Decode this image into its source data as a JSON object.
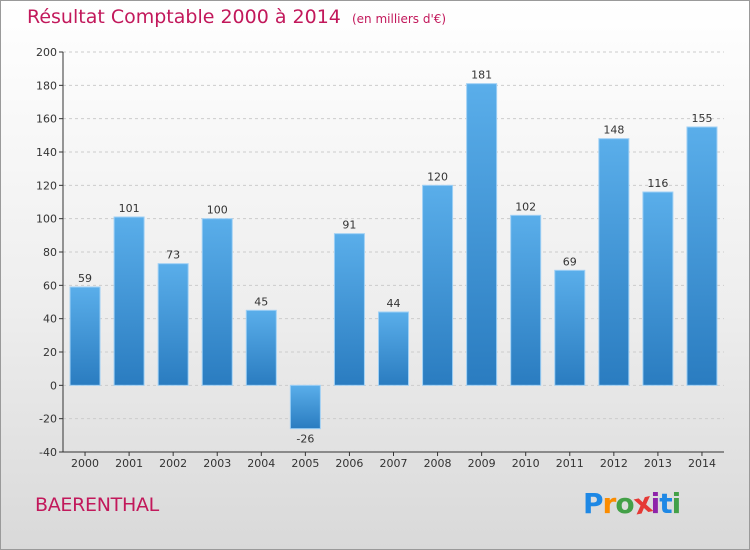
{
  "chart_data": {
    "type": "bar",
    "title": "Résultat Comptable 2000 à 2014",
    "subtitle": "(en milliers d'€)",
    "categories": [
      "2000",
      "2001",
      "2002",
      "2003",
      "2004",
      "2005",
      "2006",
      "2007",
      "2008",
      "2009",
      "2010",
      "2011",
      "2012",
      "2013",
      "2014"
    ],
    "values": [
      59,
      101,
      73,
      100,
      45,
      -26,
      91,
      44,
      120,
      181,
      102,
      69,
      148,
      116,
      155
    ],
    "ylim": [
      -40,
      200
    ],
    "yticks": [
      -40,
      -20,
      0,
      20,
      40,
      60,
      80,
      100,
      120,
      140,
      160,
      180,
      200
    ],
    "xlabel": "",
    "ylabel": "",
    "grid": "horizontal dashed",
    "bar_color": "#3d93d8"
  },
  "location": "BAERENTHAL",
  "logo": {
    "letters": [
      "P",
      "r",
      "o",
      "x",
      "i",
      "t",
      "i"
    ],
    "colors": [
      "#1e88e5",
      "#fb8c00",
      "#43a047",
      "#e53935",
      "#8e24aa",
      "#1e88e5",
      "#43a047"
    ]
  },
  "colors": {
    "title": "#c2185b",
    "axis": "#333333",
    "grid": "#cccccc"
  }
}
